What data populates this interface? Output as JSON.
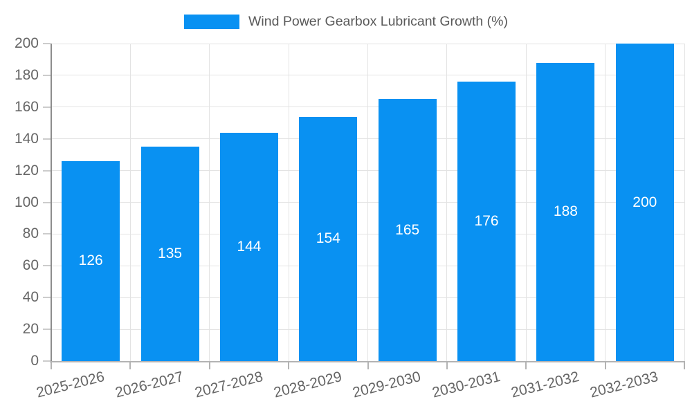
{
  "chart_data": {
    "type": "bar",
    "title": "Wind Power Gearbox Lubricant Growth (%)",
    "categories": [
      "2025-2026",
      "2026-2027",
      "2027-2028",
      "2028-2029",
      "2029-2030",
      "2030-2031",
      "2031-2032",
      "2032-2033"
    ],
    "values": [
      126,
      135,
      144,
      154,
      165,
      176,
      188,
      200
    ],
    "xlabel": "",
    "ylabel": "",
    "ylim": [
      0,
      200
    ],
    "ytick_step": 20,
    "ytick_labels": [
      "0",
      "20",
      "40",
      "60",
      "80",
      "100",
      "120",
      "140",
      "160",
      "180",
      "200"
    ],
    "grid": true,
    "legend_position": "top-center",
    "colors": {
      "bar": "#0991F2",
      "value_label": "#FFFFFF",
      "axis_label": "#666666",
      "title": "#595959",
      "gridline": "#E3E3E3",
      "x_axis_line": "#B3B3B3",
      "y_axis_line": "#8C8C8C",
      "x_tick": "#B3B3B3",
      "y_tick": "#CCCCCC",
      "background": "#FFFFFF"
    }
  }
}
